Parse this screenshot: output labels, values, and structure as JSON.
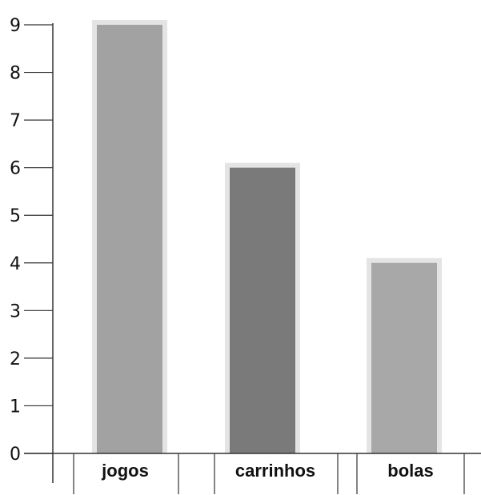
{
  "chart_data": {
    "type": "bar",
    "categories": [
      "jogos",
      "carrinhos",
      "bolas"
    ],
    "values": [
      9,
      6,
      4
    ],
    "ylim": [
      0,
      9
    ],
    "yticks": [
      0,
      1,
      2,
      3,
      4,
      5,
      6,
      7,
      8,
      9
    ],
    "grid": false,
    "legend": "none",
    "bar_colors": [
      "#a2a2a2",
      "#7a7a7a",
      "#a8a8a8"
    ],
    "bar_border_color": "#e4e4e4"
  }
}
